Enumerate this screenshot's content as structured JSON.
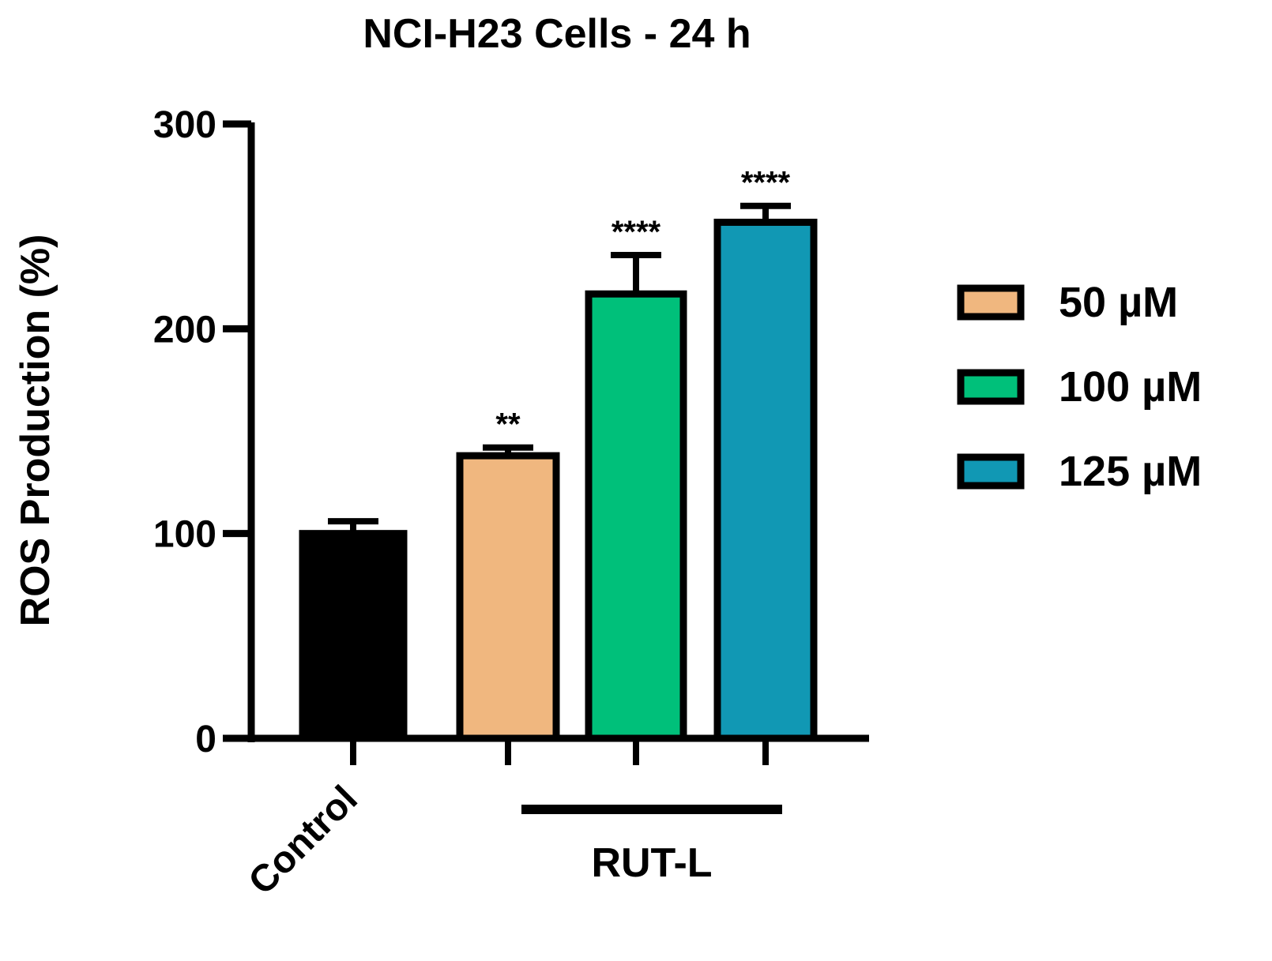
{
  "chart_data": {
    "type": "bar",
    "title": "NCI-H23 Cells - 24 h",
    "y_label": "ROS Production (%)",
    "categories": [
      "Control",
      null,
      null,
      null
    ],
    "values": [
      100,
      138,
      217,
      252
    ],
    "errors": [
      6,
      4,
      19,
      8
    ],
    "colors": [
      "#000000",
      "#f0b77f",
      "#00c07a",
      "#1198b4"
    ],
    "annotations": [
      null,
      "**",
      "****",
      "****"
    ],
    "group_labels": [
      null,
      "RUT-L",
      "RUT-L",
      "RUT-L"
    ],
    "legend_names": [
      null,
      "50 µM",
      "100 µM",
      "125 µM"
    ],
    "ylim": [
      0,
      300
    ],
    "yticks": [
      0,
      100,
      200,
      300
    ]
  }
}
